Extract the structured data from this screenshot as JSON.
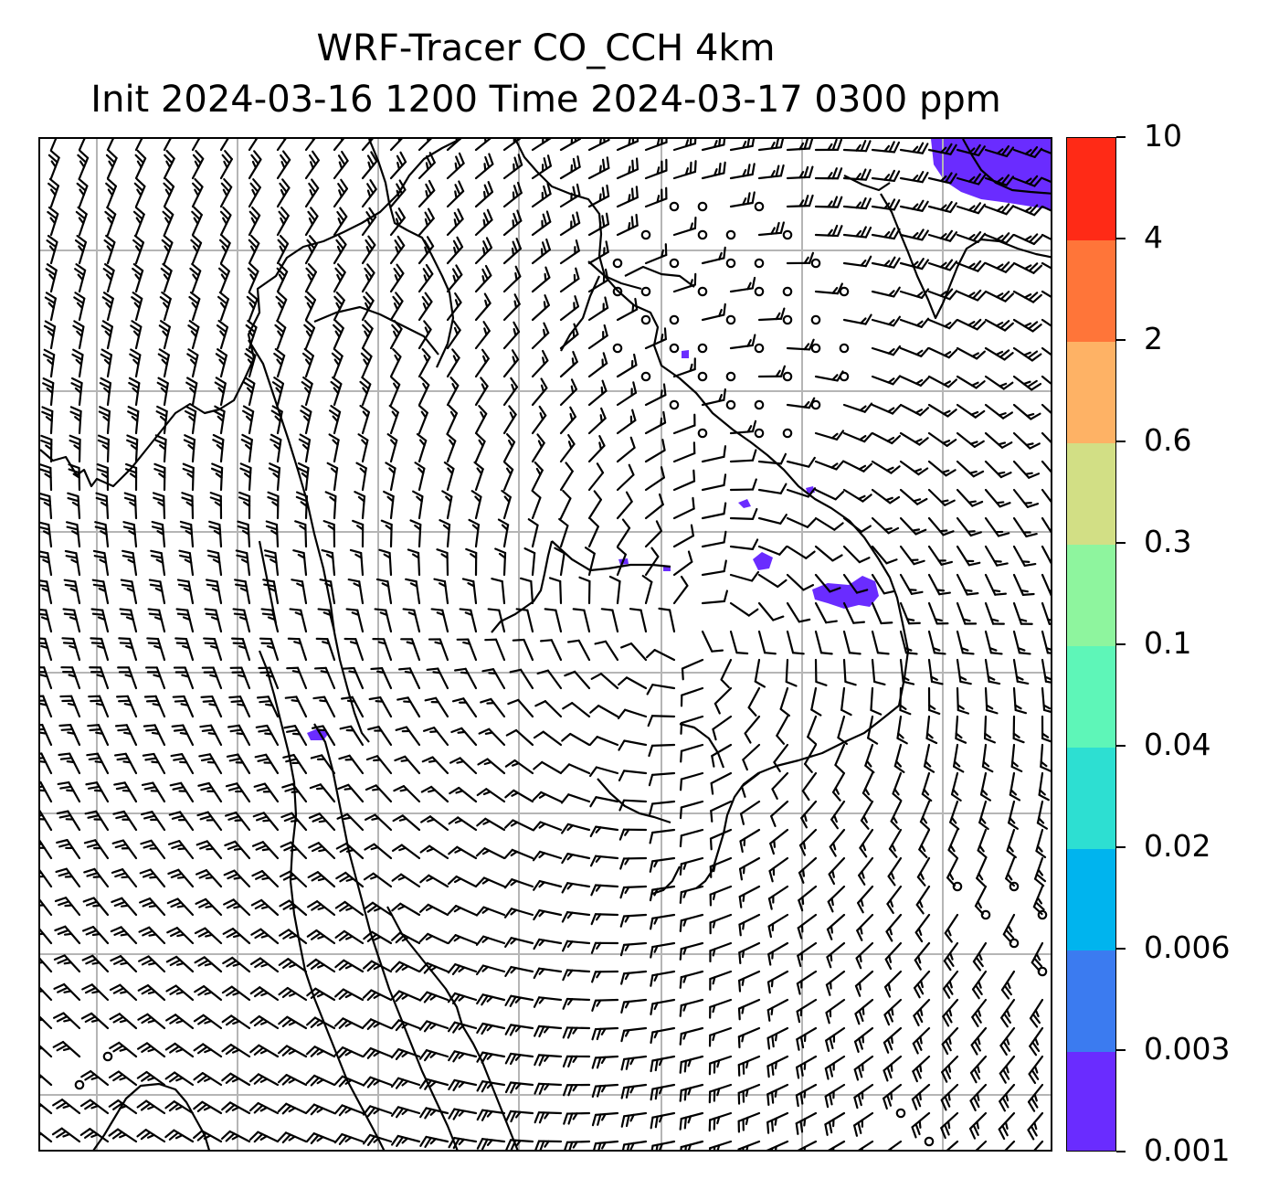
{
  "title": {
    "line1": "WRF-Tracer CO_CCH 4km",
    "line2": "Init 2024-03-16 1200 Time 2024-03-17 0300 ppm"
  },
  "colorbar": {
    "labels": [
      "0.001",
      "0.003",
      "0.006",
      "0.02",
      "0.04",
      "0.1",
      "0.3",
      "0.6",
      "2",
      "4",
      "10"
    ],
    "colors": [
      "#6a2cff",
      "#3b7bf0",
      "#00b4ee",
      "#2ddfd2",
      "#5ef6b8",
      "#8ef59e",
      "#d2df85",
      "#feb265",
      "#ff7539",
      "#ff2a16"
    ]
  },
  "map": {
    "field": "CO_CCH tracer concentration with wind barbs",
    "wind_circulation": "cyclonic (clockwise) low centered near the middle of the domain",
    "tracer_patch_color": "#6a2cff"
  }
}
